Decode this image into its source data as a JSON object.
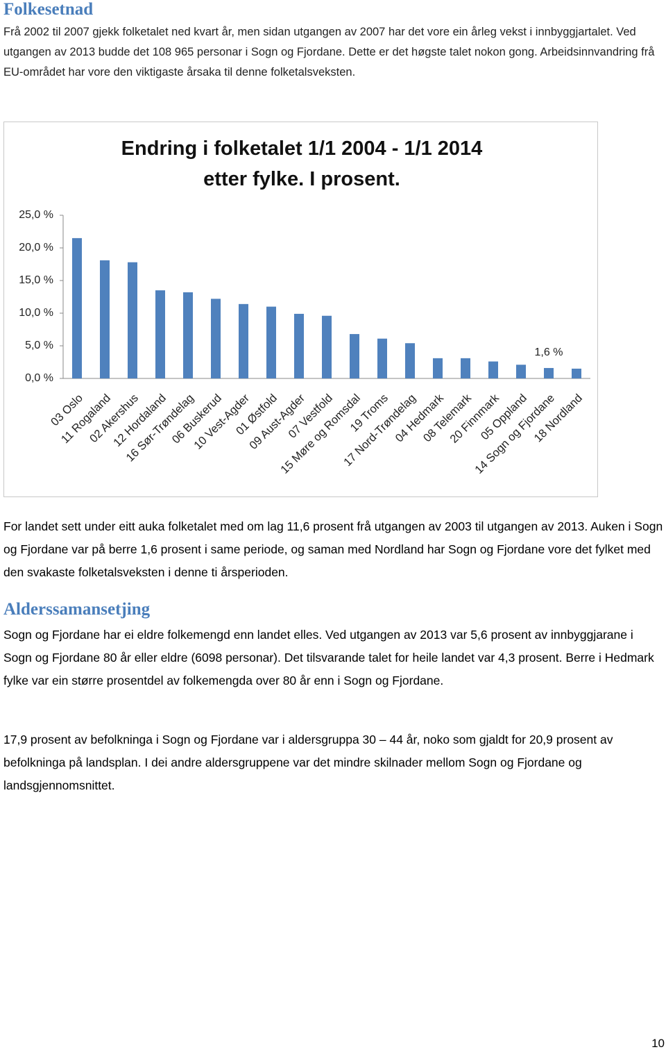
{
  "heading_1": "Folkesetnad",
  "intro": "Frå 2002 til 2007 gjekk folketalet ned kvart år, men sidan utgangen av 2007 har det vore ein årleg vekst i innbyggjartalet. Ved utgangen av 2013 budde det 108 965 personar i Sogn og Fjordane. Dette er det høgste talet nokon gong. Arbeidsinnvandring frå EU-området har vore den viktigaste årsaka til denne folketalsveksten.",
  "chart_data": {
    "type": "bar",
    "title": "Endring i folketalet 1/1 2004 - 1/1 2014\netter fylke. I prosent.",
    "categories": [
      "03 Oslo",
      "11 Rogaland",
      "02 Akershus",
      "12 Hordaland",
      "16 Sør-Trøndelag",
      "06 Buskerud",
      "10 Vest-Agder",
      "01 Østfold",
      "09 Aust-Agder",
      "07 Vestfold",
      "15 Møre og Romsdal",
      "19 Troms",
      "17 Nord-Trøndelag",
      "04 Hedmark",
      "08 Telemark",
      "20 Finnmark",
      "05 Oppland",
      "14 Sogn og Fjordane",
      "18 Nordland"
    ],
    "values": [
      21.5,
      18.1,
      17.8,
      13.5,
      13.2,
      12.2,
      11.4,
      11.0,
      9.9,
      9.6,
      6.8,
      6.1,
      5.4,
      3.1,
      3.1,
      2.6,
      2.1,
      1.6,
      1.5
    ],
    "value_labels": [
      null,
      null,
      null,
      null,
      null,
      null,
      null,
      null,
      null,
      null,
      null,
      null,
      null,
      null,
      null,
      null,
      null,
      "1,6 %",
      null
    ],
    "color": "#4f81bd",
    "ylim": [
      0,
      25
    ],
    "yticks": [
      {
        "value": 0,
        "label": "0,0 %"
      },
      {
        "value": 5,
        "label": "5,0 %"
      },
      {
        "value": 10,
        "label": "10,0 %"
      },
      {
        "value": 15,
        "label": "15,0 %"
      },
      {
        "value": 20,
        "label": "20,0 %"
      },
      {
        "value": 25,
        "label": "25,0 %"
      }
    ],
    "grid": false
  },
  "after_chart": "For landet sett under eitt auka folketalet med om lag 11,6 prosent frå utgangen av 2003 til utgangen av 2013. Auken i Sogn og Fjordane var på berre 1,6 prosent i same periode, og saman med Nordland har Sogn og Fjordane vore det fylket med den svakaste folketalsveksten i denne ti årsperioden.",
  "heading_2": "Alderssamansetjing",
  "paragraphs": [
    "Sogn og Fjordane har ei eldre folkemengd enn landet elles. Ved utgangen av 2013 var 5,6 prosent av innbyggjarane i Sogn og Fjordane 80 år eller eldre (6098 personar). Det tilsvarande talet for heile landet var 4,3 prosent. Berre i Hedmark fylke var ein større prosentdel av folkemengda over 80 år enn i Sogn og Fjordane.",
    "17,9 prosent av befolkninga i Sogn og Fjordane var i aldersgruppa 30 – 44 år, noko som gjaldt for 20,9 prosent av befolkninga på landsplan. I dei andre aldersgruppene var det mindre skilnader mellom Sogn og Fjordane og landsgjennomsnittet."
  ],
  "page_number": "10"
}
